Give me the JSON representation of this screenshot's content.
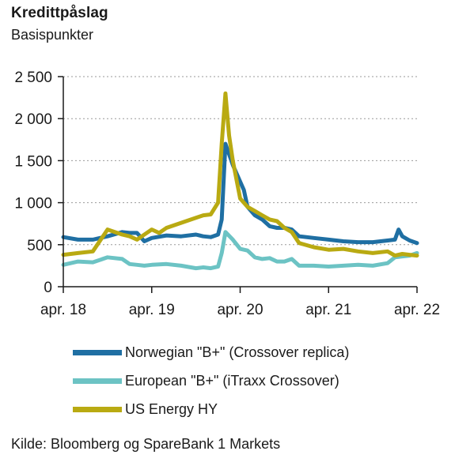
{
  "header": {
    "title": "Kredittpåslag",
    "subtitle": "Basispunkter"
  },
  "source": "Kilde: Bloomberg og SpareBank 1 Markets",
  "colors": {
    "norwegian": "#1f6fa3",
    "european": "#6cc3c4",
    "us_energy": "#b9aa12",
    "grid": "#9a9a9a",
    "axis": "#1a1a1a"
  },
  "chart_data": {
    "type": "line",
    "title": "Kredittpåslag",
    "ylabel": "Basispunkter",
    "xlabel": "",
    "ylim": [
      0,
      2500
    ],
    "xlim": [
      0,
      48
    ],
    "y_ticks": [
      0,
      500,
      1000,
      1500,
      2000,
      2500
    ],
    "y_tick_labels": [
      "0",
      "500",
      "1 000",
      "1 500",
      "2 000",
      "2 500"
    ],
    "x_ticks": [
      0,
      12,
      24,
      36,
      48
    ],
    "x_tick_labels": [
      "apr. 18",
      "apr. 19",
      "apr. 20",
      "apr. 21",
      "apr. 22"
    ],
    "grid": "horizontal dotted",
    "legend_position": "bottom",
    "series": [
      {
        "name": "Norwegian \"B+\" (Crossover replica)",
        "color_key": "norwegian",
        "x": [
          0,
          2,
          4,
          6,
          8,
          9,
          10,
          11,
          12,
          14,
          16,
          18,
          19,
          20,
          21,
          21.5,
          22,
          23,
          24,
          24.5,
          25,
          26,
          27,
          28,
          29,
          30,
          31,
          32,
          34,
          36,
          38,
          40,
          42,
          44,
          45,
          45.5,
          46,
          47,
          48
        ],
        "y": [
          590,
          560,
          560,
          600,
          650,
          640,
          640,
          540,
          580,
          610,
          600,
          620,
          600,
          590,
          620,
          800,
          1700,
          1450,
          1250,
          1150,
          950,
          850,
          800,
          720,
          700,
          700,
          680,
          600,
          580,
          560,
          540,
          530,
          530,
          550,
          560,
          680,
          600,
          550,
          520
        ]
      },
      {
        "name": "European \"B+\" (iTraxx Crossover)",
        "color_key": "european",
        "x": [
          0,
          2,
          4,
          6,
          8,
          9,
          10,
          11,
          12,
          14,
          16,
          18,
          19,
          20,
          21,
          21.5,
          22,
          23,
          24,
          25,
          26,
          27,
          28,
          29,
          30,
          31,
          32,
          34,
          36,
          38,
          40,
          42,
          44,
          45,
          46,
          47,
          48
        ],
        "y": [
          260,
          300,
          290,
          350,
          330,
          270,
          260,
          250,
          260,
          270,
          250,
          220,
          230,
          220,
          240,
          400,
          650,
          560,
          450,
          430,
          350,
          330,
          340,
          300,
          300,
          330,
          250,
          250,
          240,
          250,
          260,
          250,
          280,
          350,
          360,
          370,
          400
        ]
      },
      {
        "name": "US Energy HY",
        "color_key": "us_energy",
        "x": [
          0,
          2,
          4,
          6,
          8,
          9,
          10,
          11,
          12,
          13,
          14,
          16,
          18,
          19,
          20,
          21,
          21.5,
          22,
          22.5,
          23,
          24,
          25,
          26,
          27,
          28,
          29,
          30,
          31,
          32,
          34,
          36,
          38,
          40,
          42,
          44,
          45,
          46,
          47,
          48
        ],
        "y": [
          380,
          400,
          420,
          680,
          620,
          600,
          560,
          620,
          680,
          640,
          700,
          760,
          820,
          850,
          860,
          1000,
          1700,
          2300,
          1800,
          1500,
          1050,
          950,
          900,
          850,
          800,
          780,
          700,
          650,
          520,
          470,
          440,
          450,
          420,
          400,
          420,
          370,
          390,
          380,
          370
        ]
      }
    ]
  }
}
